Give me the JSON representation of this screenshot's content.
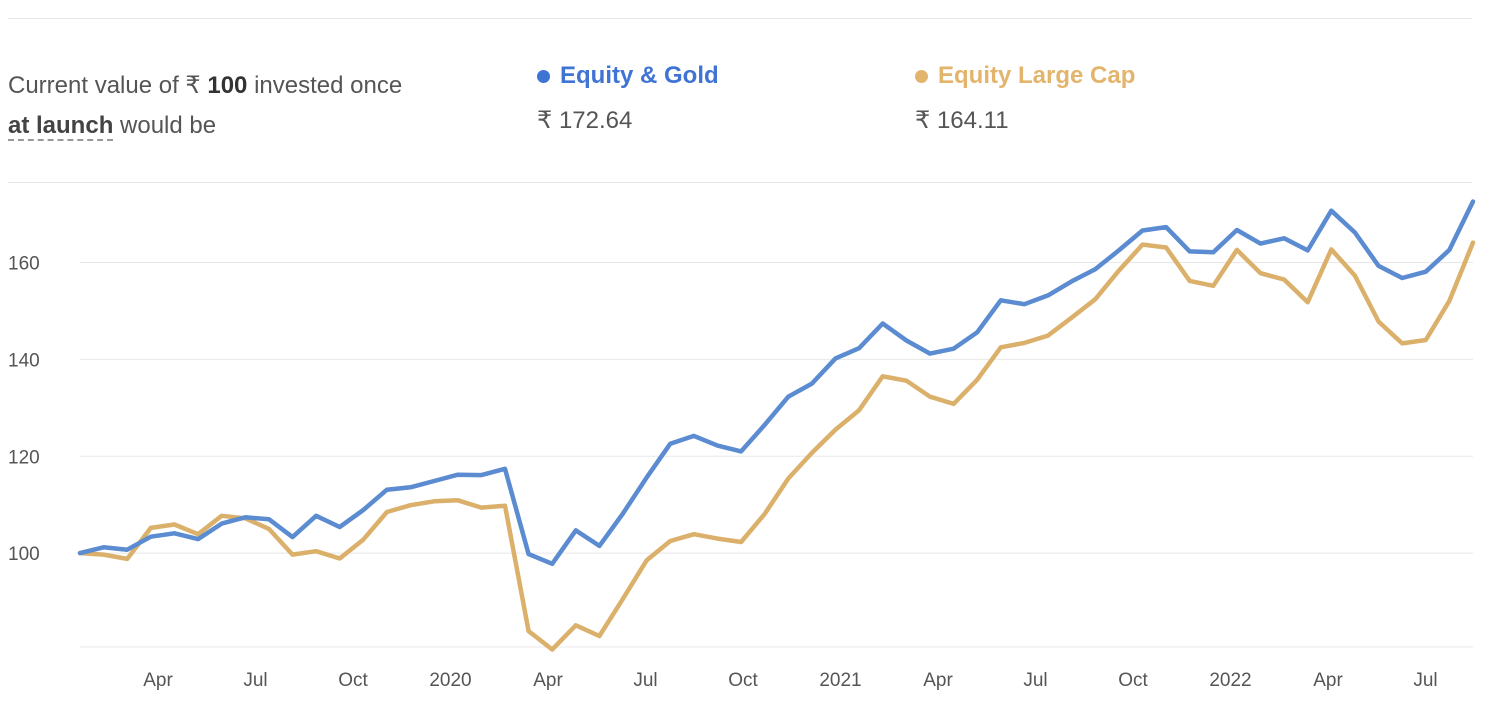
{
  "summary": {
    "text_before": "Current value of ₹ ",
    "amount": "100",
    "text_after": " invested once",
    "period": "at launch",
    "text_end": " would be"
  },
  "legend": [
    {
      "name": "Equity & Gold",
      "value": "₹ 172.64",
      "color": "#3f73d4"
    },
    {
      "name": "Equity Large Cap",
      "value": "₹ 164.11",
      "color": "#e3b56c"
    }
  ],
  "chart_data": {
    "type": "line",
    "x_ticks": [
      "Apr",
      "Jul",
      "Oct",
      "2020",
      "Apr",
      "Jul",
      "Oct",
      "2021",
      "Apr",
      "Jul",
      "Oct",
      "2022",
      "Apr",
      "Jul"
    ],
    "y_ticks": [
      "100",
      "120",
      "140",
      "160"
    ],
    "ylim": [
      80,
      176
    ],
    "grid": true,
    "series": [
      {
        "name": "Equity & Gold",
        "color": "#5b8bd0",
        "values": [
          100,
          101.2,
          100.7,
          103.4,
          104.1,
          102.9,
          106.1,
          107.4,
          107.0,
          103.3,
          107.7,
          105.4,
          108.9,
          113.1,
          113.6,
          114.9,
          116.2,
          116.1,
          117.4,
          99.8,
          97.8,
          104.7,
          101.5,
          108.2,
          115.6,
          122.6,
          124.2,
          122.2,
          121.0,
          126.5,
          132.3,
          135.0,
          140.2,
          142.3,
          147.4,
          143.9,
          141.2,
          142.2,
          145.6,
          152.2,
          151.4,
          153.2,
          156.1,
          158.6,
          162.5,
          166.6,
          167.3,
          162.3,
          162.1,
          166.7,
          163.9,
          165.0,
          162.5,
          170.7,
          166.2,
          159.3,
          156.8,
          158.1,
          162.6,
          172.6
        ]
      },
      {
        "name": "Equity Large Cap",
        "color": "#dbb06a",
        "values": [
          100,
          99.7,
          98.8,
          105.2,
          105.9,
          103.9,
          107.7,
          107.2,
          105.0,
          99.7,
          100.4,
          98.9,
          102.8,
          108.5,
          109.9,
          110.7,
          110.9,
          109.4,
          109.8,
          83.9,
          80.1,
          85.1,
          82.9,
          90.6,
          98.5,
          102.5,
          103.9,
          103.0,
          102.3,
          108.1,
          115.4,
          120.7,
          125.5,
          129.5,
          136.5,
          135.6,
          132.3,
          130.8,
          135.8,
          142.5,
          143.4,
          144.9,
          148.6,
          152.4,
          158.3,
          163.7,
          163.1,
          156.2,
          155.2,
          162.6,
          157.8,
          156.5,
          151.8,
          162.7,
          157.3,
          147.8,
          143.3,
          144.0,
          152.1,
          164.1
        ]
      }
    ]
  }
}
